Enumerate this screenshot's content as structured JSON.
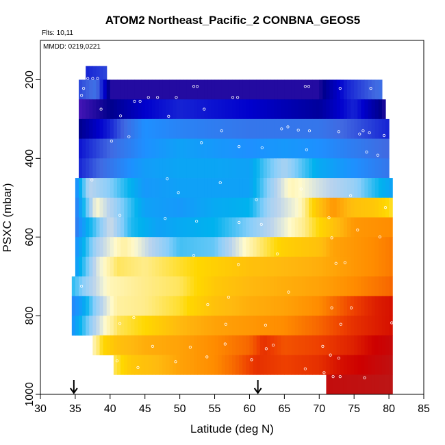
{
  "chart_data": {
    "type": "heatmap",
    "title": "ATOM2 Northeast_Pacific_2 CONBNA_GEOS5",
    "flights_note": "Flts: 10,11",
    "date_note": "MMDD: 0219,0221",
    "xlabel": "Latitude (deg N)",
    "ylabel": "PSXC (mbar)",
    "xlim": [
      30,
      85
    ],
    "ylim": [
      1000,
      100
    ],
    "xticks": [
      30,
      35,
      40,
      45,
      50,
      55,
      60,
      65,
      70,
      75,
      80,
      85
    ],
    "yticks": [
      200,
      400,
      600,
      800,
      1000
    ],
    "arrow_markers_latitude": [
      34.8,
      61.2
    ],
    "bands": [
      {
        "p_top": 165,
        "p_bot": 200,
        "lat_start": 36.5,
        "lat_end": 39.5,
        "lats": [
          36.5,
          39.5
        ],
        "vals": [
          0.9,
          0.88
        ]
      },
      {
        "p_top": 200,
        "p_bot": 250,
        "lat_start": 35.5,
        "lat_end": 79.0,
        "lats": [
          35.5,
          38,
          40,
          50,
          60,
          70,
          74,
          79
        ],
        "vals": [
          0.88,
          0.85,
          0.97,
          0.97,
          0.97,
          0.97,
          0.9,
          0.85
        ]
      },
      {
        "p_top": 250,
        "p_bot": 300,
        "lat_start": 35.5,
        "lat_end": 79.5,
        "lats": [
          35.5,
          40,
          45,
          50,
          60,
          70,
          75,
          79.5
        ],
        "vals": [
          0.98,
          0.96,
          0.92,
          0.9,
          0.92,
          0.95,
          0.9,
          0.97
        ]
      },
      {
        "p_top": 300,
        "p_bot": 350,
        "lat_start": 35.5,
        "lat_end": 80.0,
        "lats": [
          35.5,
          40,
          45,
          50,
          60,
          70,
          80
        ],
        "vals": [
          0.96,
          0.9,
          0.8,
          0.82,
          0.84,
          0.84,
          0.9
        ]
      },
      {
        "p_top": 350,
        "p_bot": 400,
        "lat_start": 35.5,
        "lat_end": 80.0,
        "lats": [
          35.5,
          40,
          45,
          50,
          60,
          65,
          70,
          80
        ],
        "vals": [
          0.91,
          0.86,
          0.8,
          0.76,
          0.8,
          0.78,
          0.8,
          0.86
        ]
      },
      {
        "p_top": 400,
        "p_bot": 450,
        "lat_start": 35.5,
        "lat_end": 80.0,
        "lats": [
          35.5,
          40,
          45,
          50,
          55,
          60,
          62,
          65,
          70,
          75,
          80
        ],
        "vals": [
          0.9,
          0.84,
          0.77,
          0.75,
          0.75,
          0.76,
          0.68,
          0.6,
          0.74,
          0.8,
          0.84
        ]
      },
      {
        "p_top": 450,
        "p_bot": 500,
        "lat_start": 35.0,
        "lat_end": 80.5,
        "lats": [
          35,
          37,
          40,
          45,
          50,
          60,
          63,
          66,
          70,
          75,
          78,
          80.5
        ],
        "vals": [
          0.82,
          0.58,
          0.64,
          0.78,
          0.76,
          0.76,
          0.62,
          0.5,
          0.56,
          0.62,
          0.7,
          0.76
        ]
      },
      {
        "p_top": 500,
        "p_bot": 550,
        "lat_start": 35.0,
        "lat_end": 80.5,
        "lats": [
          35,
          38,
          41,
          45,
          50,
          55,
          60,
          63,
          67,
          70,
          72,
          75,
          78,
          80.5
        ],
        "vals": [
          0.84,
          0.52,
          0.62,
          0.76,
          0.78,
          0.74,
          0.72,
          0.6,
          0.52,
          0.34,
          0.26,
          0.34,
          0.36,
          0.42
        ]
      },
      {
        "p_top": 550,
        "p_bot": 600,
        "lat_start": 35.0,
        "lat_end": 80.5,
        "lats": [
          35,
          37,
          40,
          43,
          47,
          50,
          55,
          60,
          65,
          70,
          75,
          80.5
        ],
        "vals": [
          0.84,
          0.72,
          0.56,
          0.7,
          0.76,
          0.74,
          0.72,
          0.64,
          0.54,
          0.4,
          0.26,
          0.24
        ]
      },
      {
        "p_top": 600,
        "p_bot": 650,
        "lat_start": 35.0,
        "lat_end": 80.5,
        "lats": [
          35,
          38,
          42,
          45,
          50,
          55,
          58,
          61,
          65,
          70,
          72,
          75,
          80.5
        ],
        "vals": [
          0.8,
          0.6,
          0.48,
          0.56,
          0.68,
          0.66,
          0.56,
          0.46,
          0.38,
          0.34,
          0.28,
          0.26,
          0.22
        ]
      },
      {
        "p_top": 650,
        "p_bot": 700,
        "lat_start": 35.0,
        "lat_end": 80.5,
        "lats": [
          35,
          38,
          41,
          45,
          50,
          55,
          60,
          65,
          70,
          75,
          80.5
        ],
        "vals": [
          0.78,
          0.56,
          0.44,
          0.46,
          0.42,
          0.38,
          0.34,
          0.32,
          0.3,
          0.26,
          0.22
        ]
      },
      {
        "p_top": 700,
        "p_bot": 750,
        "lat_start": 34.5,
        "lat_end": 80.5,
        "lats": [
          34.5,
          37,
          40,
          45,
          50,
          55,
          60,
          65,
          70,
          75,
          80.5
        ],
        "vals": [
          0.7,
          0.6,
          0.5,
          0.46,
          0.44,
          0.36,
          0.32,
          0.3,
          0.28,
          0.24,
          0.2
        ]
      },
      {
        "p_top": 750,
        "p_bot": 800,
        "lat_start": 34.5,
        "lat_end": 80.5,
        "lats": [
          34.5,
          36,
          38,
          41,
          45,
          50,
          55,
          60,
          65,
          70,
          75,
          78,
          80.5
        ],
        "vals": [
          0.82,
          0.76,
          0.62,
          0.48,
          0.46,
          0.42,
          0.34,
          0.3,
          0.28,
          0.24,
          0.16,
          0.12,
          0.1
        ]
      },
      {
        "p_top": 800,
        "p_bot": 850,
        "lat_start": 34.5,
        "lat_end": 80.5,
        "lats": [
          34.5,
          36,
          38,
          41,
          45,
          50,
          55,
          60,
          65,
          70,
          75,
          80.5
        ],
        "vals": [
          0.8,
          0.7,
          0.58,
          0.44,
          0.4,
          0.32,
          0.28,
          0.26,
          0.24,
          0.2,
          0.14,
          0.1
        ]
      },
      {
        "p_top": 850,
        "p_bot": 900,
        "lat_start": 37.5,
        "lat_end": 80.5,
        "lats": [
          37.5,
          39,
          41,
          45,
          50,
          55,
          60,
          62,
          65,
          70,
          75,
          78,
          80.5
        ],
        "vals": [
          0.5,
          0.4,
          0.34,
          0.3,
          0.28,
          0.24,
          0.2,
          0.14,
          0.18,
          0.16,
          0.12,
          0.08,
          0.06
        ]
      },
      {
        "p_top": 900,
        "p_bot": 950,
        "lat_start": 40.5,
        "lat_end": 80.5,
        "lats": [
          40.5,
          43,
          47,
          50,
          55,
          58,
          61,
          65,
          70,
          73,
          76,
          80.5
        ],
        "vals": [
          0.44,
          0.36,
          0.32,
          0.28,
          0.24,
          0.2,
          0.14,
          0.16,
          0.14,
          0.1,
          0.08,
          0.04
        ]
      },
      {
        "p_top": 950,
        "p_bot": 1000,
        "lat_start": 71.0,
        "lat_end": 80.5,
        "lats": [
          71,
          76,
          80.5
        ],
        "vals": [
          0.05,
          0.04,
          0.03
        ]
      }
    ],
    "circle_markers": [
      [
        36.8,
        197
      ],
      [
        37.5,
        197
      ],
      [
        38.2,
        197
      ],
      [
        36.2,
        222
      ],
      [
        35.9,
        240
      ],
      [
        43.5,
        255
      ],
      [
        44.3,
        255
      ],
      [
        52.0,
        217
      ],
      [
        52.5,
        217
      ],
      [
        68.0,
        217
      ],
      [
        68.5,
        217
      ],
      [
        73.0,
        222
      ],
      [
        77.4,
        222
      ],
      [
        45.5,
        245
      ],
      [
        46.8,
        245
      ],
      [
        49.5,
        245
      ],
      [
        53.5,
        275
      ],
      [
        57.6,
        245
      ],
      [
        58.3,
        245
      ],
      [
        38.7,
        275
      ],
      [
        41.5,
        292
      ],
      [
        48.4,
        293
      ],
      [
        56.0,
        330
      ],
      [
        64.6,
        325
      ],
      [
        65.5,
        320
      ],
      [
        67.0,
        328
      ],
      [
        68.6,
        330
      ],
      [
        72.8,
        332
      ],
      [
        75.8,
        338
      ],
      [
        76.3,
        330
      ],
      [
        77.2,
        335
      ],
      [
        79.3,
        342
      ],
      [
        40.2,
        356
      ],
      [
        42.7,
        345
      ],
      [
        53.1,
        360
      ],
      [
        58.5,
        370
      ],
      [
        61.8,
        373
      ],
      [
        68.2,
        378
      ],
      [
        76.8,
        384
      ],
      [
        78.4,
        392
      ],
      [
        37.4,
        455
      ],
      [
        48.2,
        452
      ],
      [
        49.8,
        487
      ],
      [
        55.8,
        462
      ],
      [
        61.0,
        505
      ],
      [
        67.4,
        478
      ],
      [
        74.5,
        495
      ],
      [
        79.5,
        525
      ],
      [
        41.4,
        545
      ],
      [
        47.9,
        553
      ],
      [
        52.4,
        560
      ],
      [
        58.5,
        563
      ],
      [
        61.7,
        568
      ],
      [
        71.4,
        551
      ],
      [
        71.8,
        602
      ],
      [
        75.5,
        582
      ],
      [
        78.7,
        600
      ],
      [
        52.0,
        647
      ],
      [
        64.0,
        643
      ],
      [
        72.4,
        667
      ],
      [
        73.7,
        665
      ],
      [
        58.4,
        670
      ],
      [
        35.9,
        725
      ],
      [
        65.6,
        740
      ],
      [
        57.0,
        753
      ],
      [
        54.0,
        772
      ],
      [
        71.8,
        780
      ],
      [
        74.6,
        780
      ],
      [
        41.4,
        820
      ],
      [
        43.4,
        805
      ],
      [
        56.6,
        822
      ],
      [
        62.3,
        824
      ],
      [
        73.1,
        822
      ],
      [
        80.4,
        818
      ],
      [
        46.1,
        878
      ],
      [
        51.5,
        880
      ],
      [
        56.5,
        872
      ],
      [
        62.4,
        884
      ],
      [
        63.4,
        875
      ],
      [
        70.5,
        878
      ],
      [
        71.6,
        900
      ],
      [
        72.8,
        908
      ],
      [
        44.0,
        932
      ],
      [
        49.4,
        917
      ],
      [
        53.9,
        905
      ],
      [
        60.3,
        912
      ],
      [
        68.0,
        935
      ],
      [
        70.7,
        945
      ],
      [
        72.0,
        955
      ],
      [
        73.0,
        955
      ],
      [
        76.5,
        958
      ],
      [
        41.0,
        915
      ]
    ]
  }
}
